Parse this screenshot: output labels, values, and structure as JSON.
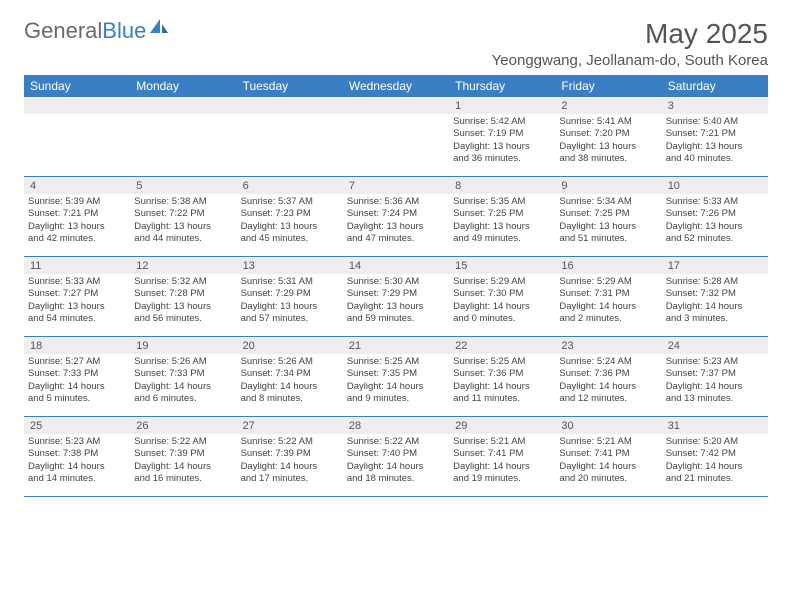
{
  "logo": {
    "text1": "General",
    "text2": "Blue"
  },
  "title": "May 2025",
  "location": "Yeonggwang, Jeollanam-do, South Korea",
  "colors": {
    "header_bg": "#3a7fc4",
    "header_text": "#ffffff",
    "daynum_bg": "#eeeeee",
    "border": "#3a7fc4",
    "body_text": "#444444"
  },
  "dayNames": [
    "Sunday",
    "Monday",
    "Tuesday",
    "Wednesday",
    "Thursday",
    "Friday",
    "Saturday"
  ],
  "weeks": [
    [
      {
        "blank": true
      },
      {
        "blank": true
      },
      {
        "blank": true
      },
      {
        "blank": true
      },
      {
        "n": "1",
        "sr": "Sunrise: 5:42 AM",
        "ss": "Sunset: 7:19 PM",
        "d1": "Daylight: 13 hours",
        "d2": "and 36 minutes."
      },
      {
        "n": "2",
        "sr": "Sunrise: 5:41 AM",
        "ss": "Sunset: 7:20 PM",
        "d1": "Daylight: 13 hours",
        "d2": "and 38 minutes."
      },
      {
        "n": "3",
        "sr": "Sunrise: 5:40 AM",
        "ss": "Sunset: 7:21 PM",
        "d1": "Daylight: 13 hours",
        "d2": "and 40 minutes."
      }
    ],
    [
      {
        "n": "4",
        "sr": "Sunrise: 5:39 AM",
        "ss": "Sunset: 7:21 PM",
        "d1": "Daylight: 13 hours",
        "d2": "and 42 minutes."
      },
      {
        "n": "5",
        "sr": "Sunrise: 5:38 AM",
        "ss": "Sunset: 7:22 PM",
        "d1": "Daylight: 13 hours",
        "d2": "and 44 minutes."
      },
      {
        "n": "6",
        "sr": "Sunrise: 5:37 AM",
        "ss": "Sunset: 7:23 PM",
        "d1": "Daylight: 13 hours",
        "d2": "and 45 minutes."
      },
      {
        "n": "7",
        "sr": "Sunrise: 5:36 AM",
        "ss": "Sunset: 7:24 PM",
        "d1": "Daylight: 13 hours",
        "d2": "and 47 minutes."
      },
      {
        "n": "8",
        "sr": "Sunrise: 5:35 AM",
        "ss": "Sunset: 7:25 PM",
        "d1": "Daylight: 13 hours",
        "d2": "and 49 minutes."
      },
      {
        "n": "9",
        "sr": "Sunrise: 5:34 AM",
        "ss": "Sunset: 7:25 PM",
        "d1": "Daylight: 13 hours",
        "d2": "and 51 minutes."
      },
      {
        "n": "10",
        "sr": "Sunrise: 5:33 AM",
        "ss": "Sunset: 7:26 PM",
        "d1": "Daylight: 13 hours",
        "d2": "and 52 minutes."
      }
    ],
    [
      {
        "n": "11",
        "sr": "Sunrise: 5:33 AM",
        "ss": "Sunset: 7:27 PM",
        "d1": "Daylight: 13 hours",
        "d2": "and 54 minutes."
      },
      {
        "n": "12",
        "sr": "Sunrise: 5:32 AM",
        "ss": "Sunset: 7:28 PM",
        "d1": "Daylight: 13 hours",
        "d2": "and 56 minutes."
      },
      {
        "n": "13",
        "sr": "Sunrise: 5:31 AM",
        "ss": "Sunset: 7:29 PM",
        "d1": "Daylight: 13 hours",
        "d2": "and 57 minutes."
      },
      {
        "n": "14",
        "sr": "Sunrise: 5:30 AM",
        "ss": "Sunset: 7:29 PM",
        "d1": "Daylight: 13 hours",
        "d2": "and 59 minutes."
      },
      {
        "n": "15",
        "sr": "Sunrise: 5:29 AM",
        "ss": "Sunset: 7:30 PM",
        "d1": "Daylight: 14 hours",
        "d2": "and 0 minutes."
      },
      {
        "n": "16",
        "sr": "Sunrise: 5:29 AM",
        "ss": "Sunset: 7:31 PM",
        "d1": "Daylight: 14 hours",
        "d2": "and 2 minutes."
      },
      {
        "n": "17",
        "sr": "Sunrise: 5:28 AM",
        "ss": "Sunset: 7:32 PM",
        "d1": "Daylight: 14 hours",
        "d2": "and 3 minutes."
      }
    ],
    [
      {
        "n": "18",
        "sr": "Sunrise: 5:27 AM",
        "ss": "Sunset: 7:33 PM",
        "d1": "Daylight: 14 hours",
        "d2": "and 5 minutes."
      },
      {
        "n": "19",
        "sr": "Sunrise: 5:26 AM",
        "ss": "Sunset: 7:33 PM",
        "d1": "Daylight: 14 hours",
        "d2": "and 6 minutes."
      },
      {
        "n": "20",
        "sr": "Sunrise: 5:26 AM",
        "ss": "Sunset: 7:34 PM",
        "d1": "Daylight: 14 hours",
        "d2": "and 8 minutes."
      },
      {
        "n": "21",
        "sr": "Sunrise: 5:25 AM",
        "ss": "Sunset: 7:35 PM",
        "d1": "Daylight: 14 hours",
        "d2": "and 9 minutes."
      },
      {
        "n": "22",
        "sr": "Sunrise: 5:25 AM",
        "ss": "Sunset: 7:36 PM",
        "d1": "Daylight: 14 hours",
        "d2": "and 11 minutes."
      },
      {
        "n": "23",
        "sr": "Sunrise: 5:24 AM",
        "ss": "Sunset: 7:36 PM",
        "d1": "Daylight: 14 hours",
        "d2": "and 12 minutes."
      },
      {
        "n": "24",
        "sr": "Sunrise: 5:23 AM",
        "ss": "Sunset: 7:37 PM",
        "d1": "Daylight: 14 hours",
        "d2": "and 13 minutes."
      }
    ],
    [
      {
        "n": "25",
        "sr": "Sunrise: 5:23 AM",
        "ss": "Sunset: 7:38 PM",
        "d1": "Daylight: 14 hours",
        "d2": "and 14 minutes."
      },
      {
        "n": "26",
        "sr": "Sunrise: 5:22 AM",
        "ss": "Sunset: 7:39 PM",
        "d1": "Daylight: 14 hours",
        "d2": "and 16 minutes."
      },
      {
        "n": "27",
        "sr": "Sunrise: 5:22 AM",
        "ss": "Sunset: 7:39 PM",
        "d1": "Daylight: 14 hours",
        "d2": "and 17 minutes."
      },
      {
        "n": "28",
        "sr": "Sunrise: 5:22 AM",
        "ss": "Sunset: 7:40 PM",
        "d1": "Daylight: 14 hours",
        "d2": "and 18 minutes."
      },
      {
        "n": "29",
        "sr": "Sunrise: 5:21 AM",
        "ss": "Sunset: 7:41 PM",
        "d1": "Daylight: 14 hours",
        "d2": "and 19 minutes."
      },
      {
        "n": "30",
        "sr": "Sunrise: 5:21 AM",
        "ss": "Sunset: 7:41 PM",
        "d1": "Daylight: 14 hours",
        "d2": "and 20 minutes."
      },
      {
        "n": "31",
        "sr": "Sunrise: 5:20 AM",
        "ss": "Sunset: 7:42 PM",
        "d1": "Daylight: 14 hours",
        "d2": "and 21 minutes."
      }
    ]
  ]
}
